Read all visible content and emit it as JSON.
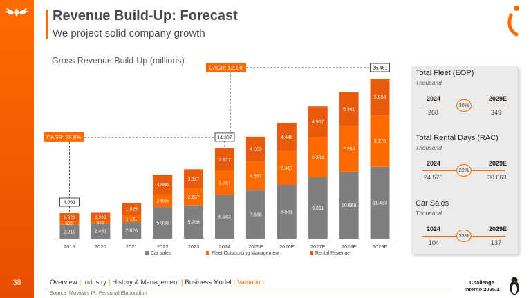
{
  "page": {
    "title": "Revenue Build-Up: Forecast",
    "subtitle": "We project solid company growth",
    "page_number": "38",
    "source": "Source: Movida's IR; Personal Elaboration",
    "challenge_line1": "Challenge",
    "challenge_line2": "Interno 2025.1"
  },
  "nav": {
    "items": [
      {
        "label": "Overview",
        "active": false
      },
      {
        "label": "Industry",
        "active": false
      },
      {
        "label": "History & Management",
        "active": false
      },
      {
        "label": "Business Model",
        "active": false
      },
      {
        "label": "Valuation",
        "active": true
      }
    ]
  },
  "colors": {
    "orange": "#ff6a00",
    "car_sales": "#7f7f7f",
    "fleet": "#ff6a00",
    "rental": "#e85a0c"
  },
  "chart_data": {
    "type": "bar",
    "stacked": true,
    "title": "Gross Revenue Build-Up (millions)",
    "categories": [
      "2019",
      "2020",
      "2021",
      "2022",
      "2023",
      "2024",
      "2025E",
      "2026E",
      "2027E",
      "2028E",
      "2029E"
    ],
    "series": [
      {
        "name": "Car sales",
        "values": [
          2219,
          2461,
          2626,
          5038,
          5298,
          6983,
          7668,
          8561,
          9811,
          10668,
          11433
        ],
        "labels": [
          "2.219",
          "2.461",
          "2.626",
          "5.038",
          "5.298",
          "6.983",
          "7.668",
          "8.561",
          "9.811",
          "10.668",
          "11.433"
        ]
      },
      {
        "name": "Fleet Outsourcing Management",
        "values": [
          520,
          373,
          1131,
          2045,
          2637,
          3787,
          4587,
          5417,
          6334,
          7264,
          8170
        ],
        "labels": [
          "520",
          "373",
          "1.131",
          "2.045",
          "2.637",
          "3.787",
          "4.587",
          "5.417",
          "6.334",
          "7.264",
          "8.170"
        ]
      },
      {
        "name": "Rental Revenue",
        "values": [
          1323,
          1286,
          1925,
          3086,
          3117,
          3617,
          4003,
          4448,
          4907,
          5361,
          5858
        ],
        "labels": [
          "1.323",
          "1.286",
          "1.925",
          "3.086",
          "3.117",
          "3.617",
          "4.003",
          "4.448",
          "4.907",
          "5.361",
          "5.858"
        ]
      }
    ],
    "ylim": [
      0,
      27000
    ],
    "totals": [
      {
        "category": "2019",
        "label": "4.061"
      },
      {
        "category": "2024",
        "label": "14.387"
      },
      {
        "category": "2029E",
        "label": "25.461"
      }
    ],
    "annotations": [
      {
        "label": "CAGR: 28,8%",
        "from": "2019",
        "to": "2024"
      },
      {
        "label": "CAGR: 12,1%",
        "from": "2024",
        "to": "2029E"
      }
    ],
    "legend_position": "bottom"
  },
  "kpis": [
    {
      "title": "Total Fleet (EOP)",
      "unit": "Thousand",
      "year_a": "2024",
      "year_b": "2029E",
      "value_a": "268",
      "value_b": "349",
      "growth": "30%"
    },
    {
      "title": "Total Rental Days (RAC)",
      "unit": "Thousand",
      "year_a": "2024",
      "year_b": "2029E",
      "value_a": "24.578",
      "value_b": "30.063",
      "growth": "22%"
    },
    {
      "title": "Car Sales",
      "unit": "Thousand",
      "year_a": "2024",
      "year_b": "2029E",
      "value_a": "104",
      "value_b": "137",
      "growth": "33%"
    }
  ]
}
